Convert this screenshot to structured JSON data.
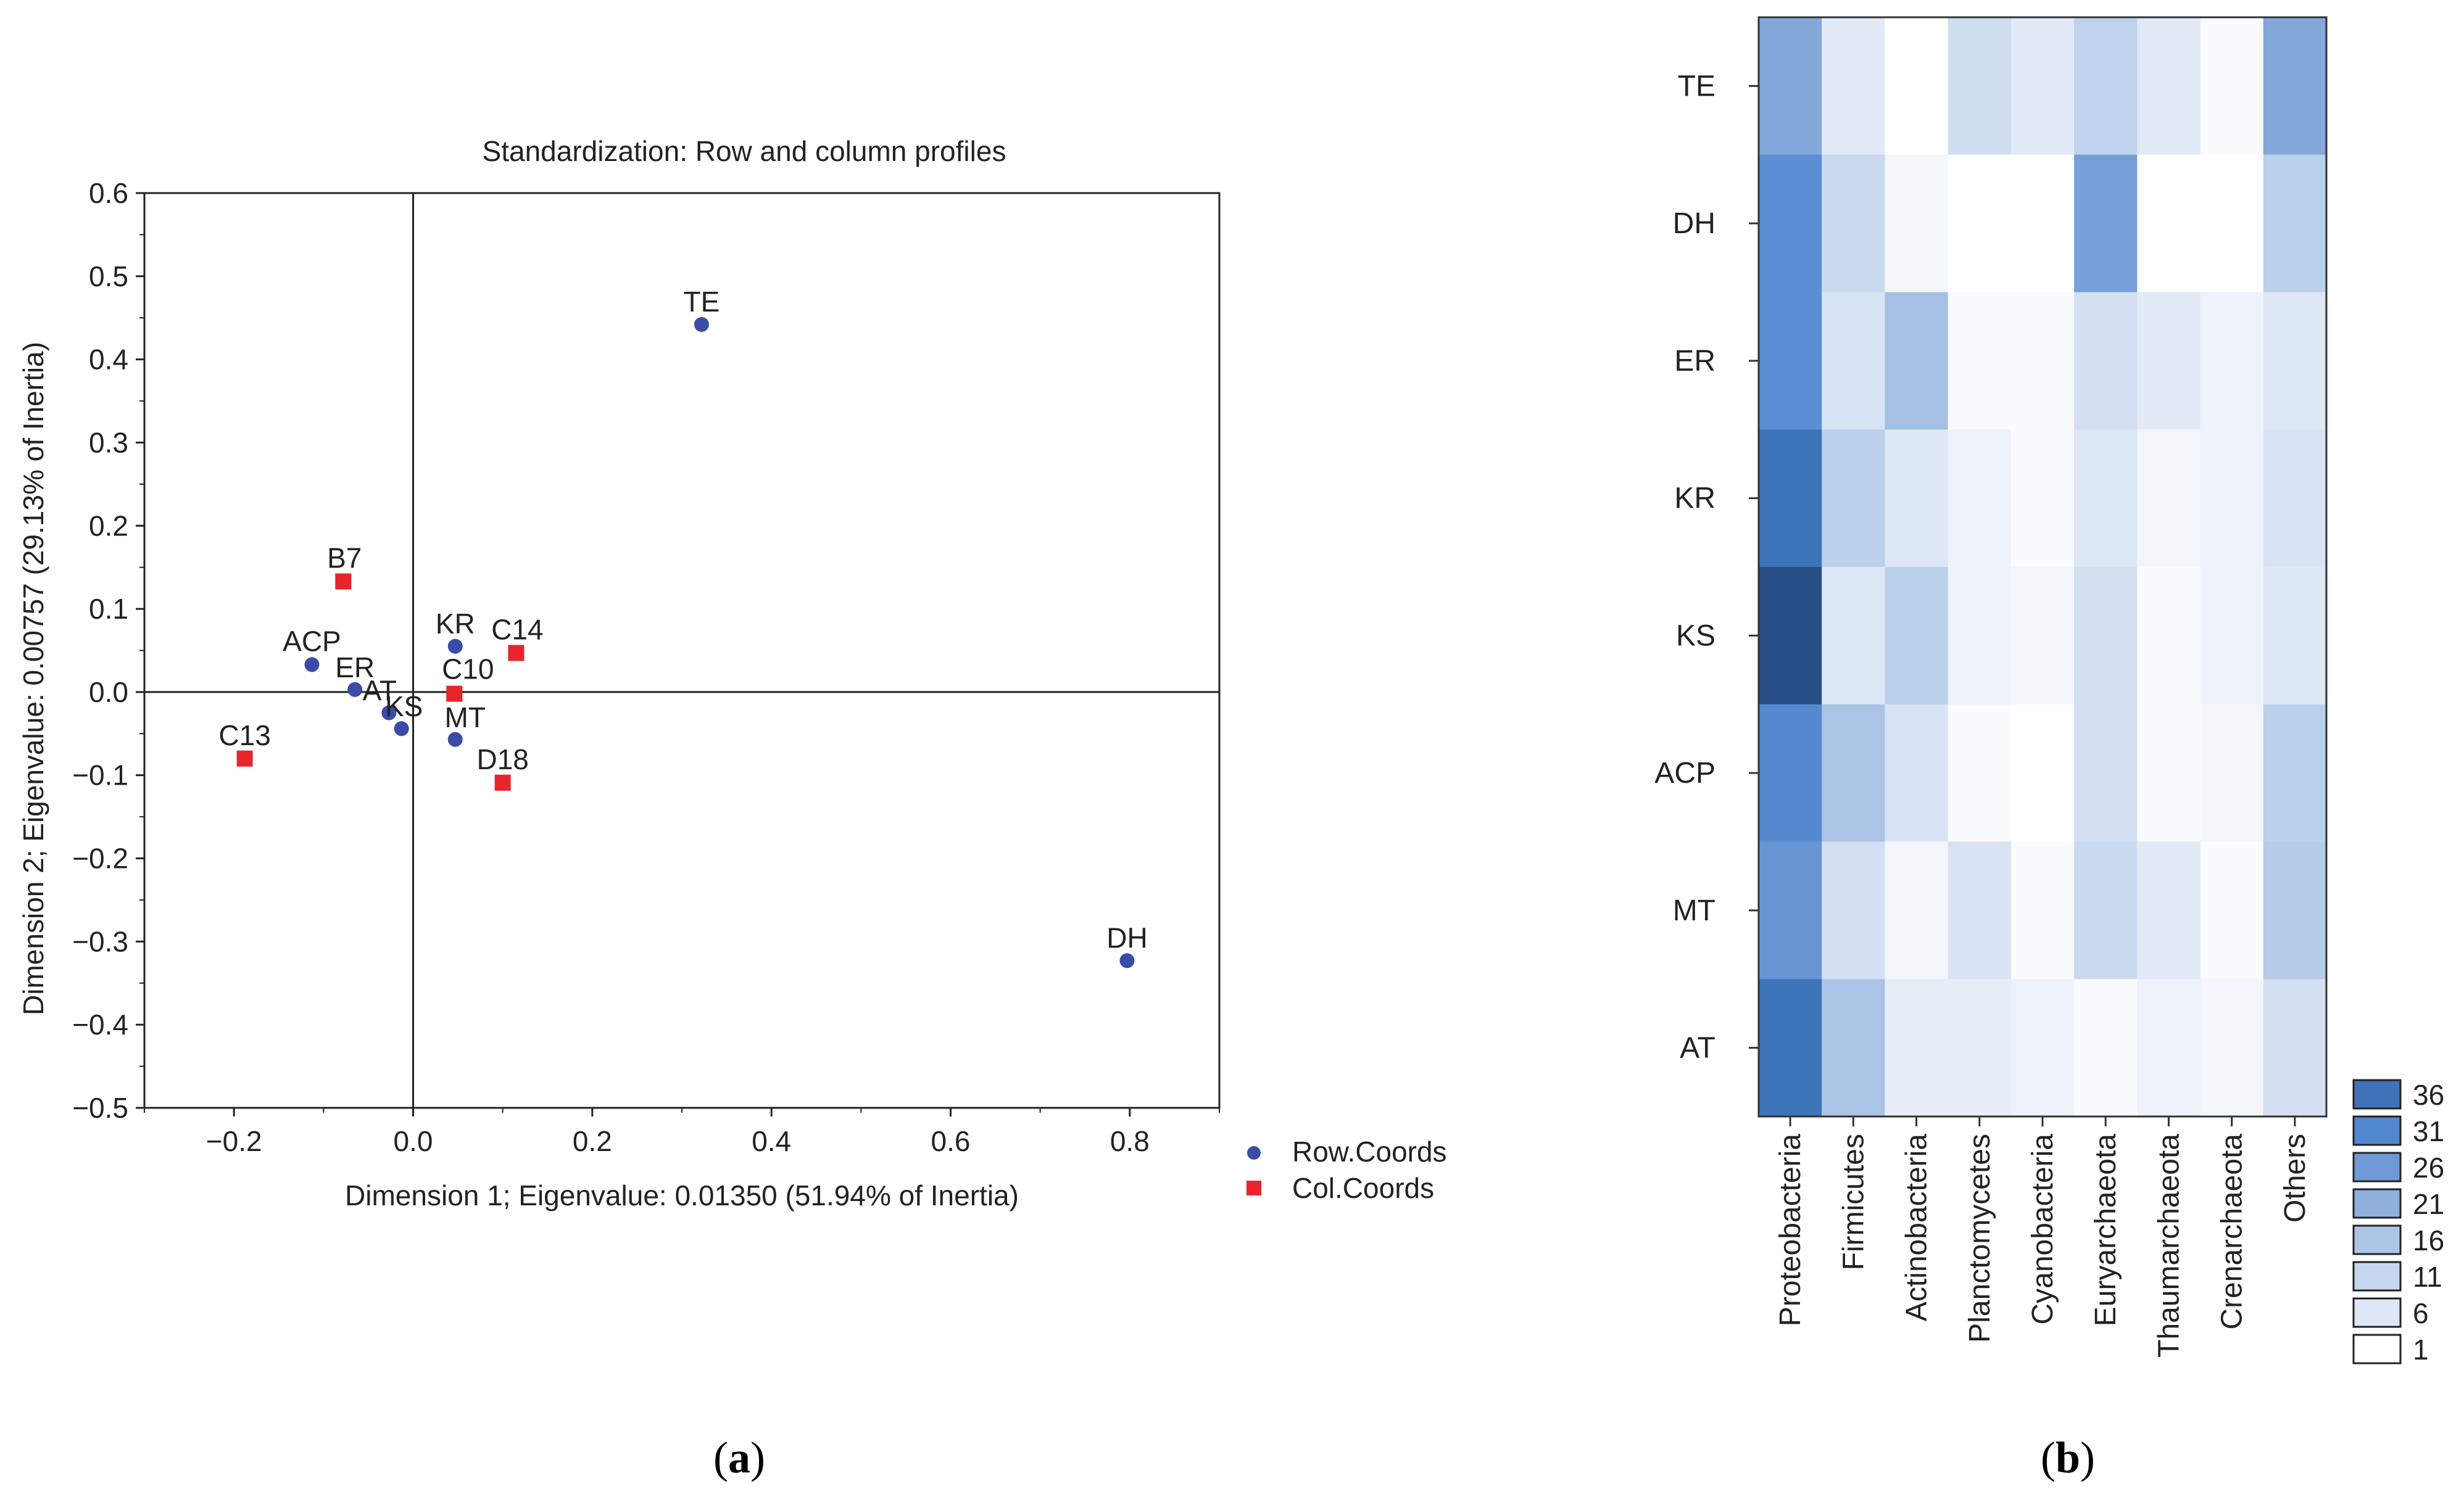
{
  "chart_data": [
    {
      "panel_label": "(a)",
      "panel_label_parts": {
        "open": "(",
        "letter": "a",
        "close": ")"
      },
      "type": "scatter",
      "title": "Standardization: Row and column profiles",
      "xlabel": "Dimension 1; Eigenvalue: 0.01350 (51.94% of Inertia)",
      "ylabel": "Dimension 2; Eigenvalue: 0.00757 (29.13% of Inertia)",
      "xlim": [
        -0.3,
        0.9
      ],
      "ylim": [
        -0.5,
        0.6
      ],
      "xticks": [
        -0.2,
        0.0,
        0.2,
        0.4,
        0.6,
        0.8
      ],
      "xtick_labels": [
        "−0.2",
        "0.0",
        "0.2",
        "0.4",
        "0.6",
        "0.8"
      ],
      "yticks": [
        0.6,
        0.5,
        0.4,
        0.3,
        0.2,
        0.1,
        0.0,
        -0.1,
        -0.2,
        -0.3,
        -0.4,
        -0.5
      ],
      "ytick_labels": [
        "0.6",
        "0.5",
        "0.4",
        "0.3",
        "0.2",
        "0.1",
        "0.0",
        "−0.1",
        "−0.2",
        "−0.3",
        "−0.4",
        "−0.5"
      ],
      "legend_position": "bottom-right, outside plot",
      "series": [
        {
          "name": "Row.Coords",
          "marker": "circle",
          "color": "#3b4ba8",
          "points": [
            {
              "label": "TE",
              "x": 0.322,
              "y": 0.442
            },
            {
              "label": "DH",
              "x": 0.797,
              "y": -0.323
            },
            {
              "label": "KR",
              "x": 0.047,
              "y": 0.055
            },
            {
              "label": "ACP",
              "x": -0.113,
              "y": 0.033
            },
            {
              "label": "ER",
              "x": -0.065,
              "y": 0.003
            },
            {
              "label": "AT",
              "x": -0.027,
              "y": -0.025
            },
            {
              "label": "KS",
              "x": -0.013,
              "y": -0.044
            },
            {
              "label": "MT",
              "x": 0.047,
              "y": -0.057
            }
          ]
        },
        {
          "name": "Col.Coords",
          "marker": "square",
          "color": "#e8252b",
          "points": [
            {
              "label": "B7",
              "x": -0.078,
              "y": 0.133
            },
            {
              "label": "C14",
              "x": 0.115,
              "y": 0.047
            },
            {
              "label": "C10",
              "x": 0.046,
              "y": -0.002
            },
            {
              "label": "C13",
              "x": -0.188,
              "y": -0.08
            },
            {
              "label": "D18",
              "x": 0.1,
              "y": -0.109
            }
          ]
        }
      ]
    },
    {
      "panel_label": "(b)",
      "panel_label_parts": {
        "open": "(",
        "letter": "b",
        "close": ")"
      },
      "type": "heatmap",
      "rows": [
        "TE",
        "DH",
        "ER",
        "KR",
        "KS",
        "ACP",
        "MT",
        "AT"
      ],
      "columns": [
        "Proteobacteria",
        "Firmicutes",
        "Actinobacteria",
        "Planctomycetes",
        "Cyanobacteria",
        "Euryarchaeota",
        "Thaumarchaeota",
        "Crenarchaeota",
        "Others"
      ],
      "values": [
        [
          23,
          6,
          1,
          10,
          6,
          13,
          6,
          2,
          23
        ],
        [
          29,
          11,
          3,
          1,
          1,
          25,
          1,
          1,
          14
        ],
        [
          29,
          8,
          18,
          2,
          2,
          9,
          6,
          4,
          7
        ],
        [
          34,
          14,
          7,
          4,
          2,
          7,
          3,
          4,
          8
        ],
        [
          39,
          7,
          14,
          4,
          3,
          9,
          2,
          4,
          7
        ],
        [
          30,
          17,
          8,
          2,
          1,
          9,
          2,
          3,
          14
        ],
        [
          27,
          9,
          3,
          8,
          2,
          11,
          6,
          2,
          15
        ],
        [
          34,
          17,
          5,
          5,
          4,
          2,
          4,
          3,
          9
        ]
      ],
      "colorbar": {
        "levels": [
          36,
          31,
          26,
          21,
          16,
          11,
          6,
          1
        ],
        "colors": [
          "#3f72b8",
          "#5087cf",
          "#6f9ad6",
          "#8fb0dc",
          "#adc6e6",
          "#c6d8ef",
          "#dde7f5",
          "#ffffff"
        ]
      }
    }
  ]
}
